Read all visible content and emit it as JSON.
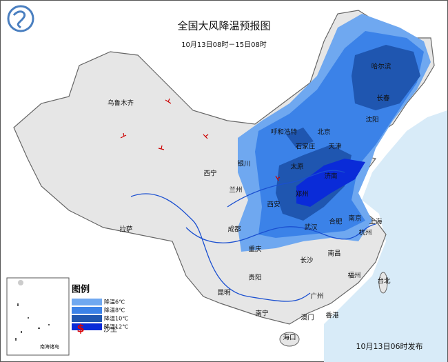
{
  "header": {
    "title": "全国大风降温预报图",
    "subtitle": "10月13日08时－15日08时"
  },
  "cities": [
    "乌鲁木齐",
    "哈尔滨",
    "长春",
    "沈阳",
    "呼和浩特",
    "北京",
    "石家庄",
    "天津",
    "银川",
    "太原",
    "济南",
    "西宁",
    "兰州",
    "郑州",
    "西安",
    "拉萨",
    "成都",
    "武汉",
    "合肥",
    "南京",
    "上海",
    "杭州",
    "重庆",
    "南昌",
    "长沙",
    "贵阳",
    "福州",
    "台北",
    "昆明",
    "广州",
    "南宁",
    "香港",
    "澳门",
    "海口"
  ],
  "legend": {
    "title": "图例",
    "items": [
      "降温6℃",
      "降温8℃",
      "降温10℃",
      "降温12℃"
    ],
    "dust": "沙尘"
  },
  "inset": "南海诸岛",
  "footer": "10月13日06时发布"
}
